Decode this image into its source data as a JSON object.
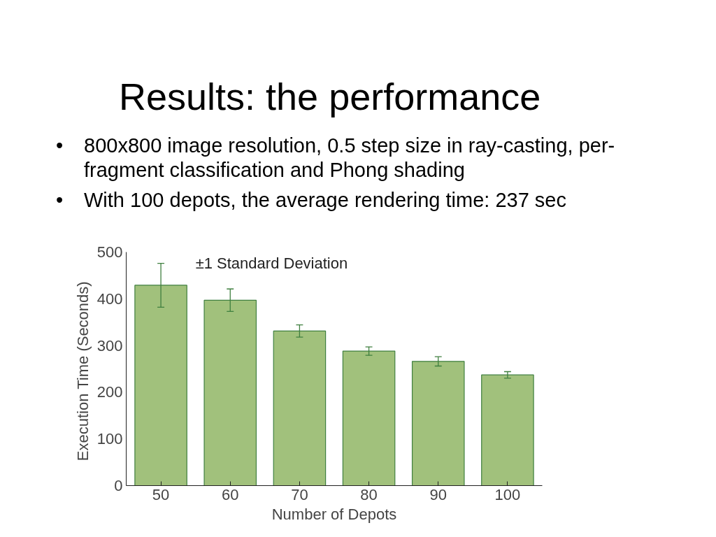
{
  "chart_data": {
    "type": "bar",
    "title": "Results: the performance",
    "annotations": [
      "•\t800x800 image resolution, 0.5 step size in ray-casting, per-fragment classification and Phong shading",
      "•\tWith 100 depots, the average rendering time: 237 sec",
      "±1 Standard Deviation"
    ],
    "xlabel": "Number of Depots",
    "ylabel": "Execution  Time (Seconds)",
    "categories": [
      "50",
      "60",
      "70",
      "80",
      "90",
      "100"
    ],
    "values": [
      429,
      397,
      331,
      288,
      266,
      237
    ],
    "errors": [
      47,
      24,
      13,
      9,
      10,
      7
    ],
    "color": "#a1c17c",
    "ylim": [
      0,
      500
    ],
    "yticks": [
      0,
      100,
      200,
      300,
      400,
      500
    ],
    "grid": false
  }
}
